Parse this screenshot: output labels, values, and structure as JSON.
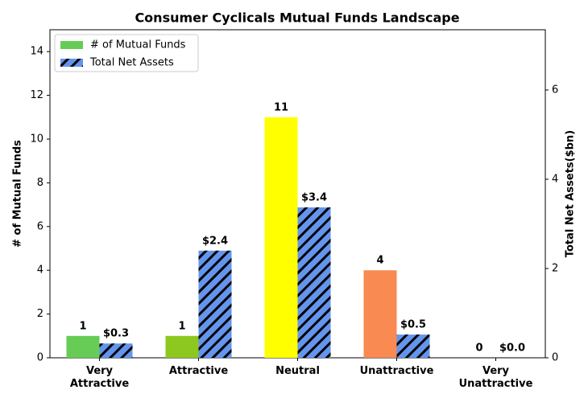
{
  "chart_data": {
    "type": "bar",
    "title": "Consumer Cyclicals Mutual Funds Landscape",
    "categories": [
      "Very\nAttractive",
      "Attractive",
      "Neutral",
      "Unattractive",
      "Very\nUnattractive"
    ],
    "ylabel": "# of Mutual Funds",
    "y2label": "Total Net Assets($bn)",
    "ylim": [
      0,
      15
    ],
    "yticks": [
      0,
      2,
      4,
      6,
      8,
      10,
      12,
      14
    ],
    "y2lim": [
      0,
      7.35
    ],
    "y2ticks": [
      0,
      2,
      4,
      6
    ],
    "legend": "upper left",
    "series": [
      {
        "name": "# of Mutual Funds",
        "color": "#66cc55",
        "point_colors": [
          "#66cc55",
          "#8dc81e",
          "#ffff00",
          "#f88a52",
          "#f88a52"
        ],
        "values": [
          1,
          1,
          11,
          4,
          0
        ]
      },
      {
        "name": "Total Net Assets",
        "color": "#6495ed",
        "hatch": true,
        "axis": "y2",
        "values": [
          0.32,
          2.4,
          3.37,
          0.52,
          0
        ],
        "value_labels": [
          "$0.3",
          "$2.4",
          "$3.4",
          "$0.5",
          "$0.0"
        ]
      }
    ]
  }
}
